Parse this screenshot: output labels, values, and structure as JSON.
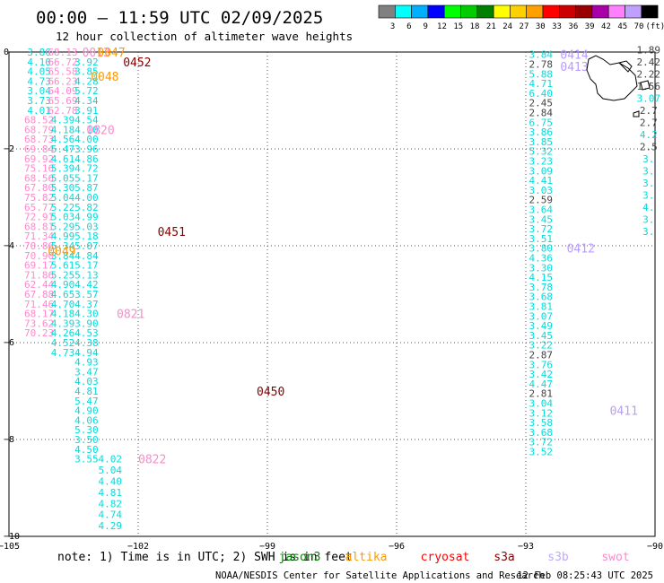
{
  "header": {
    "title": "00:00 – 11:59 UTC 02/09/2025",
    "subtitle": "12 hour collection of altimeter wave heights"
  },
  "legend_scale": {
    "colors": [
      "#808080",
      "#00ffff",
      "#00b0ff",
      "#0000ff",
      "#00ff00",
      "#00cc00",
      "#008000",
      "#ffff00",
      "#ffd000",
      "#ffa000",
      "#ff0000",
      "#cc0000",
      "#990000",
      "#aa00aa",
      "#ff80ff",
      "#c0a0ff",
      "#000000"
    ],
    "labels": [
      "3",
      "6",
      "9",
      "12",
      "15",
      "18",
      "21",
      "24",
      "27",
      "30",
      "33",
      "36",
      "39",
      "42",
      "45",
      "70",
      "(ft)"
    ]
  },
  "footer": {
    "note": "note:  1) Time is in UTC; 2) SWH is in feet",
    "satellites": [
      {
        "name": "jason3",
        "color": "#008000"
      },
      {
        "name": "altika",
        "color": "#ff9900"
      },
      {
        "name": "cryosat",
        "color": "#ff0000"
      },
      {
        "name": "s3a",
        "color": "#880000"
      },
      {
        "name": "s3b",
        "color": "#c0a8ff"
      },
      {
        "name": "swot",
        "color": "#ff88cc"
      }
    ],
    "credit": "NOAA/NESDIS Center for Satellite Applications and Research",
    "timestamp": "12 Feb 08:25:43 UTC 2025"
  },
  "chart_data": {
    "type": "scatter",
    "xlim": [
      -105,
      -90
    ],
    "ylim": [
      -10,
      0
    ],
    "x_ticks": [
      -105,
      -102,
      -99,
      -96,
      -93,
      -90
    ],
    "y_ticks": [
      0,
      -2,
      -4,
      -6,
      -8,
      -10
    ],
    "x_tick_labels": [
      "−105",
      "−102",
      "−99",
      "−96",
      "−93",
      "−90"
    ],
    "y_tick_labels": [
      "0",
      "−2",
      "−4",
      "−6",
      "−8",
      "−10"
    ],
    "grid": true,
    "colors": {
      "cyan": "#00dddd",
      "gray": "#444444",
      "pink": "#ff88cc",
      "lav": "#b89cff",
      "orange": "#ff9900",
      "darkred": "#880000"
    },
    "series": [
      {
        "color": "pink",
        "x": -104.3,
        "y_start": 0.0,
        "dy": -0.2,
        "values": [
          "3.86",
          "4.10",
          "4.05",
          "4.73",
          "3.04",
          "3.73",
          "4.01",
          "68.52",
          "68.79",
          "68.73",
          "69.84",
          "69.92",
          "75.16",
          "68.56",
          "67.80",
          "75.82",
          "65.77",
          "72.91",
          "68.81",
          "71.34",
          "70.86",
          "70.90",
          "69.17",
          "71.86",
          "62.44",
          "67.88",
          "71.46",
          "68.17",
          "73.62",
          "70.23"
        ],
        "value_colors": [
          "cyan",
          "cyan",
          "cyan",
          "cyan",
          "cyan",
          "cyan",
          "cyan",
          "pink",
          "pink",
          "pink",
          "pink",
          "pink",
          "pink",
          "pink",
          "pink",
          "pink",
          "pink",
          "pink",
          "pink",
          "pink",
          "pink",
          "pink",
          "pink",
          "pink",
          "pink",
          "pink",
          "pink",
          "pink",
          "pink",
          "pink"
        ]
      },
      {
        "color": "cyan",
        "x": -103.75,
        "y_start": 0.0,
        "dy": -0.2,
        "values": [
          "68.13",
          "66.72",
          "65.58",
          "66.23",
          "64.09",
          "65.69",
          "62.78",
          "4.39",
          "4.18",
          "4.56",
          "5.47",
          "4.61",
          "5.39",
          "5.05",
          "5.30",
          "5.04",
          "5.22",
          "5.03",
          "5.29",
          "4.99",
          "5.34",
          "3.84",
          "5.61",
          "5.25",
          "4.90",
          "4.65",
          "4.70",
          "4.18",
          "4.39",
          "4.26",
          "4.52",
          "4.73"
        ],
        "value_colors": [
          "pink",
          "pink",
          "pink",
          "pink",
          "pink",
          "pink",
          "pink",
          "cyan",
          "cyan",
          "cyan",
          "cyan",
          "cyan",
          "cyan",
          "cyan",
          "cyan",
          "cyan",
          "cyan",
          "cyan",
          "cyan",
          "cyan",
          "cyan",
          "cyan",
          "cyan",
          "cyan",
          "cyan",
          "cyan",
          "cyan",
          "cyan",
          "cyan",
          "cyan",
          "cyan",
          "cyan"
        ]
      },
      {
        "color": "cyan",
        "x": -103.2,
        "y_start": -0.2,
        "dy": -0.2,
        "values": [
          "3.92",
          "3.85",
          "4.28",
          "5.72",
          "4.34",
          "3.91",
          "4.54",
          "4.10",
          "4.00",
          "3.96",
          "4.86",
          "4.72",
          "5.17",
          "5.87",
          "4.00",
          "5.82",
          "4.99",
          "5.03",
          "5.18",
          "5.07",
          "4.84",
          "5.17",
          "5.13",
          "4.42",
          "3.57",
          "4.37",
          "4.30",
          "3.90",
          "4.53",
          "4.38",
          "4.94",
          "4.93",
          "3.47",
          "4.03",
          "4.81",
          "5.47",
          "4.90",
          "4.06",
          "5.30",
          "3.50",
          "4.50",
          "3.55"
        ]
      },
      {
        "color": "cyan",
        "x": -102.65,
        "y_start": -8.4,
        "dy": -0.23,
        "values": [
          "4.02",
          "5.04",
          "4.40",
          "4.81",
          "4.82",
          "4.74",
          "4.29"
        ]
      },
      {
        "color": "cyan",
        "x": -92.65,
        "y_start": -0.05,
        "dy": -0.2,
        "values": [
          "3.84",
          "2.78",
          "5.88",
          "4.71",
          "6.40",
          "2.45",
          "2.84",
          "6.75",
          "3.86",
          "3.85",
          "5.32",
          "3.23",
          "3.09",
          "4.41",
          "3.03",
          "2.59",
          "3.64",
          "3.45",
          "3.72",
          "3.51",
          "3.80",
          "4.36",
          "3.30",
          "4.15",
          "3.78",
          "3.68",
          "3.81",
          "3.07",
          "3.49",
          "3.45",
          "3.22",
          "2.87",
          "3.76",
          "3.42",
          "4.47",
          "2.81",
          "3.04",
          "3.12",
          "3.58",
          "3.68",
          "3.72",
          "3.52"
        ],
        "value_colors": [
          "cyan",
          "gray",
          "cyan",
          "cyan",
          "cyan",
          "gray",
          "gray",
          "cyan",
          "cyan",
          "cyan",
          "cyan",
          "cyan",
          "cyan",
          "cyan",
          "cyan",
          "gray",
          "cyan",
          "cyan",
          "cyan",
          "cyan",
          "cyan",
          "cyan",
          "cyan",
          "cyan",
          "cyan",
          "cyan",
          "cyan",
          "cyan",
          "cyan",
          "cyan",
          "cyan",
          "gray",
          "cyan",
          "cyan",
          "cyan",
          "gray",
          "cyan",
          "cyan",
          "cyan",
          "cyan",
          "cyan",
          "cyan"
        ]
      },
      {
        "color": "gray",
        "x": -90.15,
        "y_start": 0.05,
        "dy": -0.25,
        "values": [
          "1.89",
          "2.42",
          "2.22",
          "1.56",
          "3.07",
          "2.7",
          "2.7",
          "4.2",
          "2.5",
          "3.",
          "3.",
          "3.",
          "3.",
          "4.",
          "3.",
          "3."
        ],
        "value_colors": [
          "gray",
          "gray",
          "gray",
          "gray",
          "cyan",
          "gray",
          "gray",
          "cyan",
          "gray",
          "cyan",
          "cyan",
          "cyan",
          "cyan",
          "cyan",
          "cyan",
          "cyan"
        ]
      }
    ],
    "track_labels": [
      {
        "text": "0013",
        "x": -103.3,
        "y": -0.0,
        "color": "pink"
      },
      {
        "text": "0047",
        "x": -102.95,
        "y": -0.0,
        "color": "orange"
      },
      {
        "text": "0452",
        "x": -102.35,
        "y": -0.2,
        "color": "darkred"
      },
      {
        "text": "0048",
        "x": -103.1,
        "y": -0.5,
        "color": "orange"
      },
      {
        "text": "0820",
        "x": -103.2,
        "y": -1.6,
        "color": "pink"
      },
      {
        "text": "0451",
        "x": -101.55,
        "y": -3.7,
        "color": "darkred"
      },
      {
        "text": "0049",
        "x": -104.1,
        "y": -4.1,
        "color": "orange"
      },
      {
        "text": "0821",
        "x": -102.5,
        "y": -5.4,
        "color": "pink"
      },
      {
        "text": "0450",
        "x": -99.25,
        "y": -7.0,
        "color": "darkred"
      },
      {
        "text": "0822",
        "x": -102.0,
        "y": -8.4,
        "color": "pink"
      },
      {
        "text": "0414",
        "x": -92.2,
        "y": -0.05,
        "color": "lav"
      },
      {
        "text": "0413",
        "x": -92.2,
        "y": -0.3,
        "color": "lav"
      },
      {
        "text": "0412",
        "x": -92.05,
        "y": -4.05,
        "color": "lav"
      },
      {
        "text": "0411",
        "x": -91.05,
        "y": -7.4,
        "color": "lav"
      }
    ]
  }
}
